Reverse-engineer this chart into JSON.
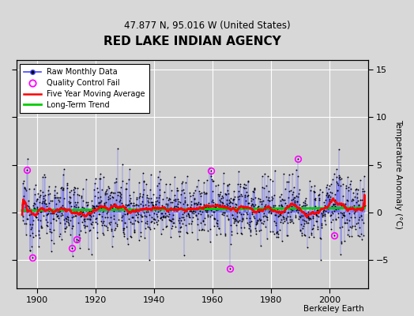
{
  "title": "RED LAKE INDIAN AGENCY",
  "subtitle": "47.877 N, 95.016 W (United States)",
  "ylabel": "Temperature Anomaly (°C)",
  "start_year": 1895,
  "end_year": 2012,
  "ylim": [
    -8,
    16
  ],
  "yticks": [
    -5,
    0,
    5,
    10,
    15
  ],
  "xticks": [
    1900,
    1920,
    1940,
    1960,
    1980,
    2000
  ],
  "xlim": [
    1893,
    2013
  ],
  "bg_color": "#d8d8d8",
  "plot_bg_color": "#d0d0d0",
  "raw_line_color": "#4444ff",
  "raw_marker_color": "black",
  "ma_color": "red",
  "trend_color": "#00cc00",
  "qc_fail_color": "magenta",
  "grid_color": "white",
  "seed": 12345,
  "note": "Berkeley Earth",
  "qc_years": [
    1896.5,
    1898.5,
    1912.0,
    1913.5,
    1959.5,
    1966.0,
    1989.0,
    2001.5
  ]
}
